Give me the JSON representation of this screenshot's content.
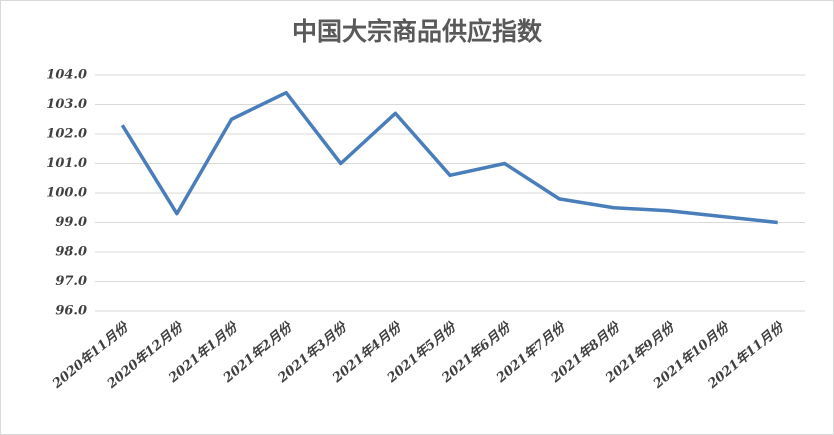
{
  "chart_data": {
    "type": "line",
    "title": "中国大宗商品供应指数",
    "categories": [
      "2020年11月份",
      "2020年12月份",
      "2021年1月份",
      "2021年2月份",
      "2021年3月份",
      "2021年4月份",
      "2021年5月份",
      "2021年6月份",
      "2021年7月份",
      "2021年8月份",
      "2021年9月份",
      "2021年10月份",
      "2021年11月份"
    ],
    "series": [
      {
        "color": "#4a7ebb",
        "values": [
          102.3,
          99.3,
          102.5,
          103.4,
          101.0,
          102.7,
          100.6,
          101.0,
          99.8,
          99.5,
          99.4,
          99.2,
          99.0
        ]
      }
    ],
    "ylim": [
      96,
      104
    ],
    "yticks": [
      {
        "value": 96,
        "label": "96.0"
      },
      {
        "value": 97,
        "label": "97.0"
      },
      {
        "value": 98,
        "label": "98.0"
      },
      {
        "value": 99,
        "label": "99.0"
      },
      {
        "value": 100,
        "label": "100.0"
      },
      {
        "value": 101,
        "label": "101.0"
      },
      {
        "value": 102,
        "label": "102.0"
      },
      {
        "value": 103,
        "label": "103.0"
      },
      {
        "value": 104,
        "label": "104.0"
      }
    ],
    "grid": true
  }
}
